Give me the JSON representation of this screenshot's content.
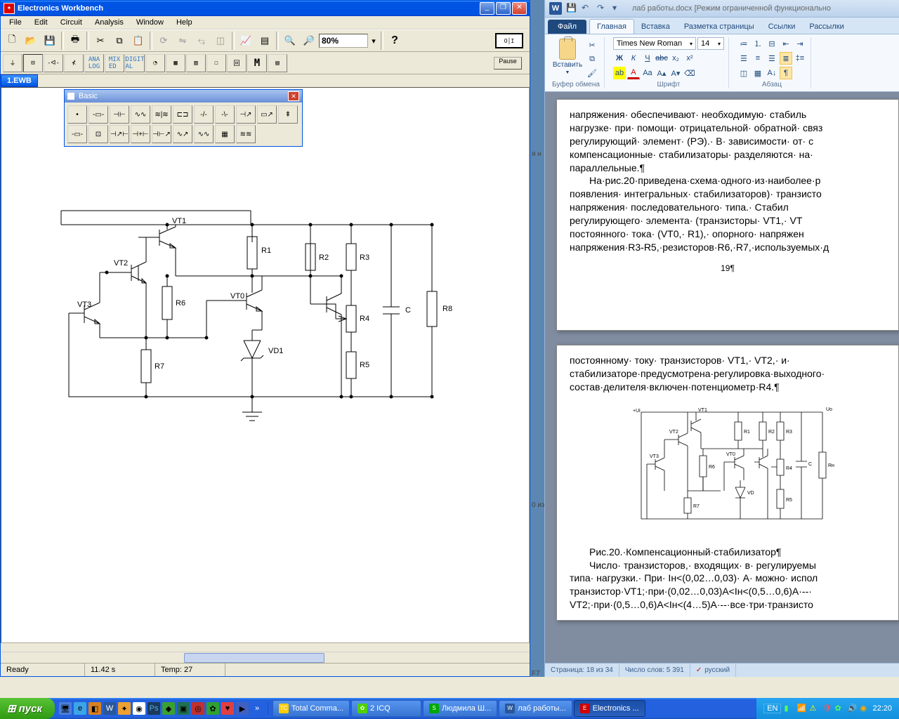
{
  "ewb": {
    "title": "Electronics Workbench",
    "menu": [
      "File",
      "Edit",
      "Circuit",
      "Analysis",
      "Window",
      "Help"
    ],
    "zoom": "80%",
    "pause": "Pause",
    "doc_tab": "1.EWB",
    "status": {
      "ready": "Ready",
      "time": "11.42 s",
      "temp": "Temp:  27"
    },
    "basic_panel": {
      "title": "Basic"
    },
    "circuit_labels": {
      "VT1": "VT1",
      "VT2": "VT2",
      "VT3": "VT3",
      "VT0": "VT0",
      "R1": "R1",
      "R2": "R2",
      "R3": "R3",
      "R4": "R4",
      "R5": "R5",
      "R6": "R6",
      "R7": "R7",
      "R8": "R8",
      "C": "C",
      "VD1": "VD1"
    }
  },
  "word": {
    "qat_doc": "лаб работы.docx [Режим ограниченной функционально",
    "tabs": {
      "file": "Файл",
      "home": "Главная",
      "insert": "Вставка",
      "layout": "Разметка страницы",
      "refs": "Ссылки",
      "mail": "Рассылки"
    },
    "ribbon": {
      "paste": "Вставить",
      "clipboard_grp": "Буфер обмена",
      "font_name": "Times New Roman",
      "font_size": "14",
      "font_grp": "Шрифт",
      "para_grp": "Абзац"
    },
    "page1": {
      "p1": "напряжения· обеспечивают· необходимую· стабиль",
      "p2": "нагрузке· при· помощи· отрицательной· обратной· связ",
      "p3": "регулирующий· элемент· (РЭ).· В· зависимости· от· с",
      "p4": "компенсационные· стабилизаторы· разделяются· на·",
      "p5": "параллельные.¶",
      "p6": "На·рис.20·приведена·схема·одного·из·наиболее·р",
      "p7": "появления· интегральных· стабилизаторов)· транзисто",
      "p8": "напряжения· последовательного· типа.· Стабил",
      "p9": "регулирующего· элемента· (транзисторы· VT1,· VT",
      "p10": "постоянного· тока· (VT0,· R1),· опорного· напряжен",
      "p11": "напряжения·R3-R5,·резисторов·R6,·R7,·используемых·д",
      "pn": "19¶"
    },
    "page2": {
      "p1": "постоянному· току· транзисторов· VT1,· VT2,· и·",
      "p2": "стабилизаторе·предусмотрена·регулировка·выходного·",
      "p3": "состав·делителя·включен·потенциометр·R4.¶",
      "cap": "Рис.20.·Компенсационный·стабилизатор¶",
      "p4": "Число· транзисторов,· входящих· в· регулируемы",
      "p5": "типа· нагрузки.· При· Iн<(0,02…0,03)· А· можно· испол",
      "p6": "транзистор·VT1;·при·(0,02…0,03)A<Iн<(0,5…0,6)A·--·",
      "p7": "VT2;·при·(0,5…0,6)A<Iн<(4…5)A·--·все·три·транзисто"
    },
    "status": {
      "page": "Страница: 18 из 34",
      "words": "Число слов: 5 391",
      "lang": "русский"
    }
  },
  "taskbar": {
    "start": "пуск",
    "tasks": [
      {
        "label": "Total Comma...",
        "icon": "TC",
        "color": "#ffcc00"
      },
      {
        "label": "2 ICQ",
        "icon": "✿",
        "color": "#4fd100"
      },
      {
        "label": "Людмила Ш...",
        "icon": "S",
        "color": "#00a800"
      },
      {
        "label": "лаб работы...",
        "icon": "W",
        "color": "#2a579a"
      },
      {
        "label": "Electronics ...",
        "icon": "E",
        "color": "#d00000",
        "active": true
      }
    ],
    "lang": "EN",
    "clock": "22:20"
  },
  "colors": {
    "xp_blue": "#0054e3",
    "xp_green": "#2f9a12",
    "panel": "#ece9d8"
  }
}
